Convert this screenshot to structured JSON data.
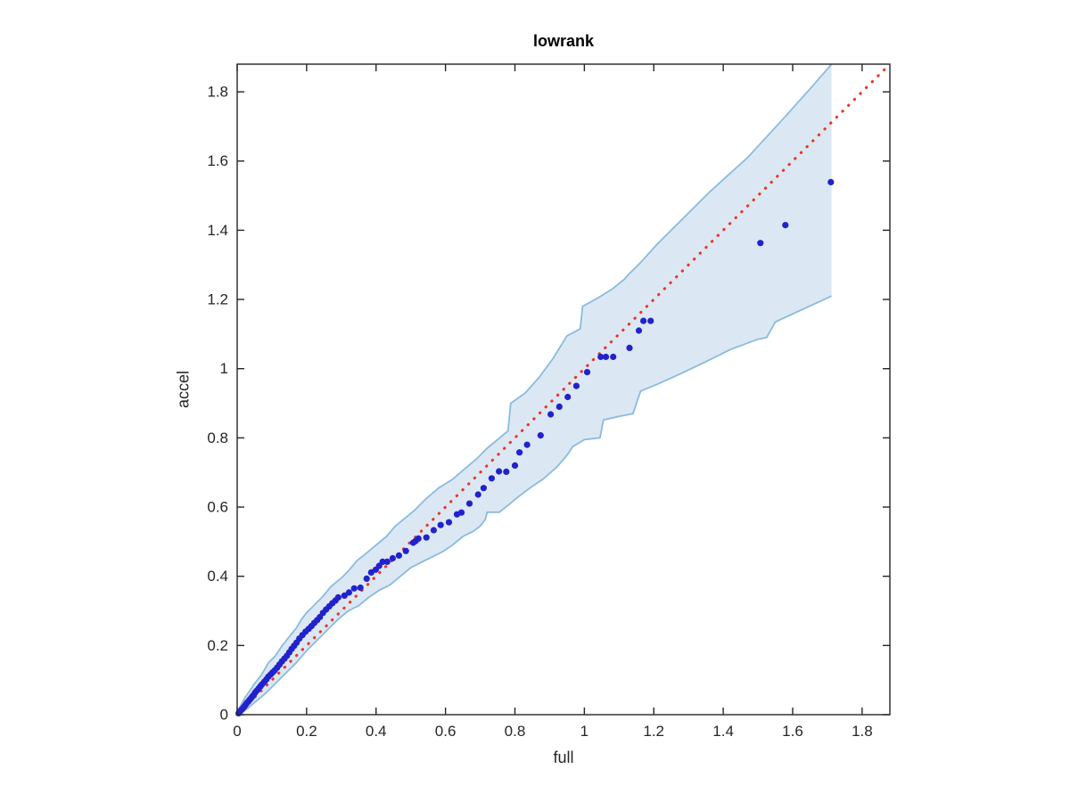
{
  "chart_data": {
    "type": "scatter",
    "title": "lowrank",
    "xlabel": "full",
    "ylabel": "accel",
    "xlim": [
      0,
      1.88
    ],
    "ylim": [
      0,
      1.88
    ],
    "grid": false,
    "legend": null,
    "x_ticks": [
      0,
      0.2,
      0.4,
      0.6,
      0.8,
      1,
      1.2,
      1.4,
      1.6,
      1.8
    ],
    "x_tick_labels": [
      "0",
      "0.2",
      "0.4",
      "0.6",
      "0.8",
      "1",
      "1.2",
      "1.4",
      "1.6",
      "1.8"
    ],
    "y_ticks": [
      0,
      0.2,
      0.4,
      0.6,
      0.8,
      1,
      1.2,
      1.4,
      1.6,
      1.8
    ],
    "y_tick_labels": [
      "0",
      "0.2",
      "0.4",
      "0.6",
      "0.8",
      "1",
      "1.2",
      "1.4",
      "1.6",
      "1.8"
    ],
    "colors": {
      "axis": "#262626",
      "band_fill": "#dbe8f4",
      "band_edge": "#8abbdd",
      "points": "#2222cc",
      "identity_line": "#ee3424",
      "title": "#000000"
    },
    "identity_line": {
      "x": [
        0,
        1.88
      ],
      "y": [
        0,
        1.88
      ],
      "style": "dotted"
    },
    "band": {
      "right_edge_x": 1.712,
      "upper": [
        [
          0,
          0.008
        ],
        [
          0.02,
          0.045
        ],
        [
          0.05,
          0.09
        ],
        [
          0.07,
          0.115
        ],
        [
          0.09,
          0.15
        ],
        [
          0.11,
          0.17
        ],
        [
          0.13,
          0.2
        ],
        [
          0.15,
          0.225
        ],
        [
          0.17,
          0.25
        ],
        [
          0.185,
          0.275
        ],
        [
          0.2,
          0.295
        ],
        [
          0.22,
          0.315
        ],
        [
          0.245,
          0.34
        ],
        [
          0.27,
          0.37
        ],
        [
          0.3,
          0.395
        ],
        [
          0.32,
          0.415
        ],
        [
          0.345,
          0.445
        ],
        [
          0.37,
          0.465
        ],
        [
          0.4,
          0.49
        ],
        [
          0.43,
          0.515
        ],
        [
          0.455,
          0.545
        ],
        [
          0.48,
          0.565
        ],
        [
          0.51,
          0.59
        ],
        [
          0.545,
          0.625
        ],
        [
          0.58,
          0.655
        ],
        [
          0.62,
          0.68
        ],
        [
          0.655,
          0.71
        ],
        [
          0.69,
          0.74
        ],
        [
          0.72,
          0.77
        ],
        [
          0.75,
          0.795
        ],
        [
          0.78,
          0.82
        ],
        [
          0.788,
          0.9
        ],
        [
          0.83,
          0.93
        ],
        [
          0.87,
          0.975
        ],
        [
          0.91,
          1.03
        ],
        [
          0.95,
          1.095
        ],
        [
          0.988,
          1.115
        ],
        [
          0.995,
          1.18
        ],
        [
          1.04,
          1.205
        ],
        [
          1.08,
          1.23
        ],
        [
          1.115,
          1.258
        ],
        [
          1.125,
          1.27
        ],
        [
          1.16,
          1.305
        ],
        [
          1.21,
          1.36
        ],
        [
          1.27,
          1.42
        ],
        [
          1.36,
          1.51
        ],
        [
          1.47,
          1.61
        ],
        [
          1.58,
          1.73
        ],
        [
          1.66,
          1.82
        ],
        [
          1.712,
          1.88
        ]
      ],
      "lower": [
        [
          0,
          0
        ],
        [
          0.02,
          0.01
        ],
        [
          0.05,
          0.035
        ],
        [
          0.08,
          0.06
        ],
        [
          0.11,
          0.09
        ],
        [
          0.14,
          0.12
        ],
        [
          0.17,
          0.15
        ],
        [
          0.2,
          0.185
        ],
        [
          0.23,
          0.215
        ],
        [
          0.26,
          0.245
        ],
        [
          0.29,
          0.275
        ],
        [
          0.32,
          0.3
        ],
        [
          0.35,
          0.315
        ],
        [
          0.38,
          0.34
        ],
        [
          0.41,
          0.36
        ],
        [
          0.44,
          0.375
        ],
        [
          0.47,
          0.4
        ],
        [
          0.5,
          0.425
        ],
        [
          0.53,
          0.44
        ],
        [
          0.56,
          0.455
        ],
        [
          0.59,
          0.47
        ],
        [
          0.62,
          0.49
        ],
        [
          0.65,
          0.515
        ],
        [
          0.68,
          0.53
        ],
        [
          0.7,
          0.545
        ],
        [
          0.715,
          0.565
        ],
        [
          0.72,
          0.585
        ],
        [
          0.755,
          0.585
        ],
        [
          0.78,
          0.605
        ],
        [
          0.81,
          0.63
        ],
        [
          0.85,
          0.66
        ],
        [
          0.88,
          0.68
        ],
        [
          0.92,
          0.715
        ],
        [
          0.95,
          0.75
        ],
        [
          0.967,
          0.775
        ],
        [
          1.0,
          0.795
        ],
        [
          1.045,
          0.8
        ],
        [
          1.055,
          0.852
        ],
        [
          1.1,
          0.862
        ],
        [
          1.14,
          0.87
        ],
        [
          1.162,
          0.935
        ],
        [
          1.21,
          0.955
        ],
        [
          1.27,
          0.982
        ],
        [
          1.35,
          1.02
        ],
        [
          1.42,
          1.055
        ],
        [
          1.5,
          1.085
        ],
        [
          1.525,
          1.09
        ],
        [
          1.55,
          1.135
        ],
        [
          1.63,
          1.172
        ],
        [
          1.712,
          1.21
        ]
      ]
    },
    "series": [
      {
        "name": "quantile-points",
        "marker": "dot",
        "points": [
          [
            0.004,
            0.004
          ],
          [
            0.008,
            0.009
          ],
          [
            0.012,
            0.014
          ],
          [
            0.016,
            0.018
          ],
          [
            0.02,
            0.023
          ],
          [
            0.024,
            0.028
          ],
          [
            0.028,
            0.034
          ],
          [
            0.032,
            0.038
          ],
          [
            0.036,
            0.043
          ],
          [
            0.04,
            0.048
          ],
          [
            0.044,
            0.053
          ],
          [
            0.048,
            0.058
          ],
          [
            0.052,
            0.064
          ],
          [
            0.057,
            0.07
          ],
          [
            0.062,
            0.076
          ],
          [
            0.067,
            0.082
          ],
          [
            0.072,
            0.088
          ],
          [
            0.078,
            0.095
          ],
          [
            0.084,
            0.102
          ],
          [
            0.09,
            0.11
          ],
          [
            0.096,
            0.116
          ],
          [
            0.102,
            0.122
          ],
          [
            0.108,
            0.128
          ],
          [
            0.115,
            0.136
          ],
          [
            0.122,
            0.145
          ],
          [
            0.129,
            0.154
          ],
          [
            0.136,
            0.162
          ],
          [
            0.143,
            0.17
          ],
          [
            0.15,
            0.18
          ],
          [
            0.157,
            0.19
          ],
          [
            0.164,
            0.199
          ],
          [
            0.171,
            0.208
          ],
          [
            0.179,
            0.22
          ],
          [
            0.188,
            0.23
          ],
          [
            0.197,
            0.24
          ],
          [
            0.206,
            0.248
          ],
          [
            0.214,
            0.256
          ],
          [
            0.222,
            0.265
          ],
          [
            0.23,
            0.273
          ],
          [
            0.238,
            0.282
          ],
          [
            0.247,
            0.294
          ],
          [
            0.256,
            0.304
          ],
          [
            0.265,
            0.313
          ],
          [
            0.274,
            0.322
          ],
          [
            0.283,
            0.33
          ],
          [
            0.291,
            0.339
          ],
          [
            0.309,
            0.344
          ],
          [
            0.322,
            0.353
          ],
          [
            0.337,
            0.365
          ],
          [
            0.355,
            0.367
          ],
          [
            0.373,
            0.393
          ],
          [
            0.386,
            0.411
          ],
          [
            0.399,
            0.419
          ],
          [
            0.409,
            0.43
          ],
          [
            0.419,
            0.442
          ],
          [
            0.432,
            0.442
          ],
          [
            0.448,
            0.452
          ],
          [
            0.466,
            0.46
          ],
          [
            0.486,
            0.473
          ],
          [
            0.507,
            0.497
          ],
          [
            0.514,
            0.502
          ],
          [
            0.522,
            0.509
          ],
          [
            0.545,
            0.512
          ],
          [
            0.566,
            0.533
          ],
          [
            0.586,
            0.548
          ],
          [
            0.61,
            0.556
          ],
          [
            0.633,
            0.579
          ],
          [
            0.646,
            0.584
          ],
          [
            0.669,
            0.61
          ],
          [
            0.694,
            0.636
          ],
          [
            0.71,
            0.655
          ],
          [
            0.733,
            0.683
          ],
          [
            0.754,
            0.703
          ],
          [
            0.775,
            0.702
          ],
          [
            0.8,
            0.72
          ],
          [
            0.813,
            0.758
          ],
          [
            0.835,
            0.78
          ],
          [
            0.874,
            0.807
          ],
          [
            0.903,
            0.868
          ],
          [
            0.928,
            0.89
          ],
          [
            0.952,
            0.918
          ],
          [
            0.977,
            0.95
          ],
          [
            1.008,
            0.99
          ],
          [
            1.047,
            1.034
          ],
          [
            1.062,
            1.034
          ],
          [
            1.083,
            1.034
          ],
          [
            1.13,
            1.06
          ],
          [
            1.157,
            1.11
          ],
          [
            1.17,
            1.138
          ],
          [
            1.191,
            1.138
          ],
          [
            1.507,
            1.363
          ],
          [
            1.579,
            1.415
          ],
          [
            1.71,
            1.539
          ]
        ]
      }
    ]
  }
}
